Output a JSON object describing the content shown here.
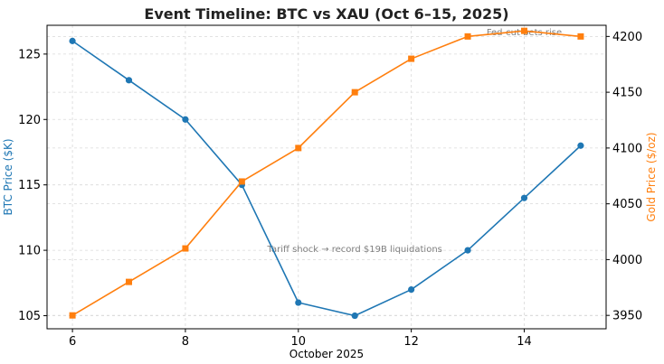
{
  "chart_data": {
    "type": "line",
    "title": "Event Timeline: BTC vs XAU (Oct 6–15, 2025)",
    "xlabel": "October 2025",
    "ylabel_left": "BTC Price ($K)",
    "ylabel_right": "Gold Price ($/oz)",
    "x": [
      6,
      7,
      8,
      9,
      10,
      11,
      12,
      13,
      14,
      15
    ],
    "xlim": [
      5.55,
      15.45
    ],
    "xticks": [
      6,
      8,
      10,
      12,
      14
    ],
    "ylim_left": [
      104.0,
      127.2
    ],
    "yticks_left": [
      105,
      110,
      115,
      120,
      125
    ],
    "ylim_right": [
      3938,
      4210
    ],
    "yticks_right": [
      3950,
      4000,
      4050,
      4100,
      4150,
      4200
    ],
    "grid": true,
    "series": [
      {
        "name": "BTC",
        "axis": "left",
        "color": "#1f77b4",
        "marker": "circle",
        "values": [
          126,
          123,
          120,
          115,
          106,
          105,
          107,
          110,
          114,
          118
        ]
      },
      {
        "name": "XAU",
        "axis": "right",
        "color": "#ff7f0e",
        "marker": "square",
        "values": [
          3950,
          3980,
          4010,
          4070,
          4100,
          4150,
          4180,
          4200,
          4205,
          4200
        ]
      }
    ],
    "annotations": [
      {
        "text": "Tariff shock → record $19B liquidations",
        "x": 11,
        "y": 4007,
        "axis": "right"
      },
      {
        "text": "Fed-cut bets rise",
        "x": 14,
        "y": 4201,
        "axis": "right"
      }
    ]
  }
}
